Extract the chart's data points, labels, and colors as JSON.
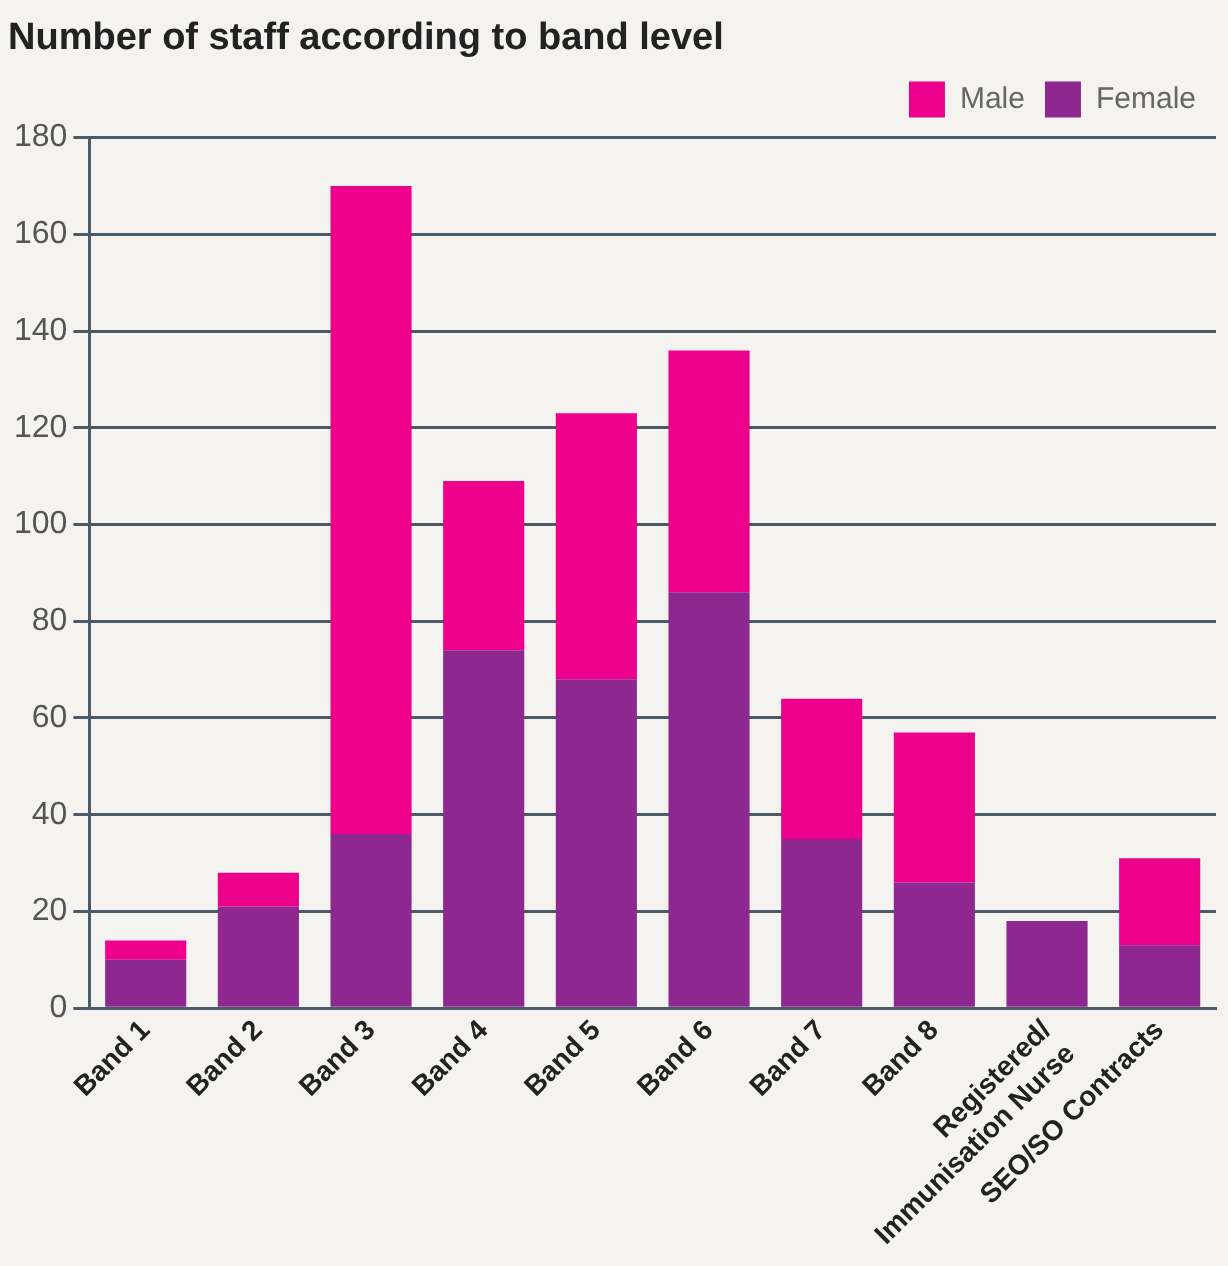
{
  "chart_data": {
    "type": "bar",
    "title": "Number of staff according to band level",
    "categories": [
      "Band 1",
      "Band 2",
      "Band 3",
      "Band 4",
      "Band 5",
      "Band 6",
      "Band 7",
      "Band 8",
      "Registered/\nImmunisation Nurse",
      "SEO/SO Contracts"
    ],
    "series": [
      {
        "name": "Female",
        "color": "#8e278f",
        "values": [
          10,
          21,
          36,
          74,
          68,
          86,
          35,
          26,
          18,
          13
        ]
      },
      {
        "name": "Male",
        "color": "#ec008c",
        "values": [
          4,
          7,
          134,
          35,
          55,
          50,
          29,
          31,
          0,
          18
        ]
      }
    ],
    "stacked": true,
    "ylim": [
      0,
      180
    ],
    "yticks": [
      0,
      20,
      40,
      60,
      80,
      100,
      120,
      140,
      160,
      180
    ],
    "grid": "y",
    "legend": "top right"
  }
}
